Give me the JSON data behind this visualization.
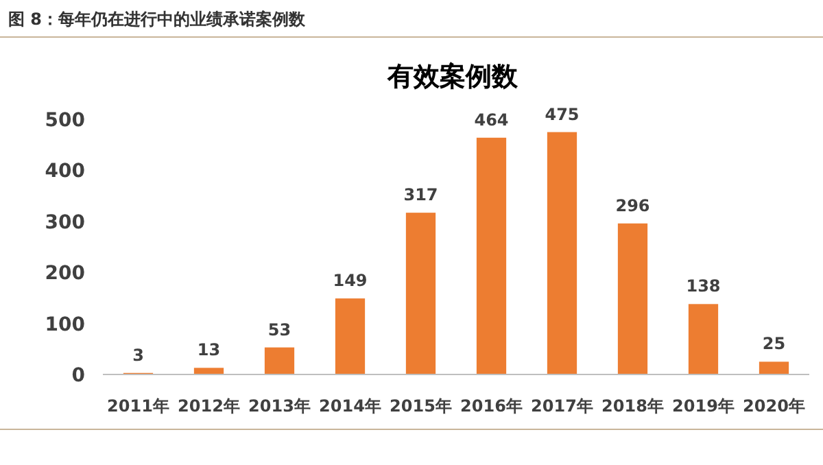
{
  "chart_data": {
    "type": "bar",
    "title": "图 8：每年仍在进行中的业绩承诺案例数",
    "subtitle": "有效案例数",
    "categories": [
      "2011年",
      "2012年",
      "2013年",
      "2014年",
      "2015年",
      "2016年",
      "2017年",
      "2018年",
      "2019年",
      "2020年"
    ],
    "values": [
      3,
      13,
      53,
      149,
      317,
      464,
      475,
      296,
      138,
      25
    ],
    "color": "#ed7d31",
    "ylim": [
      0,
      500
    ],
    "yticks": [
      0,
      100,
      200,
      300,
      400,
      500
    ],
    "data_labels": true,
    "grid": false
  }
}
